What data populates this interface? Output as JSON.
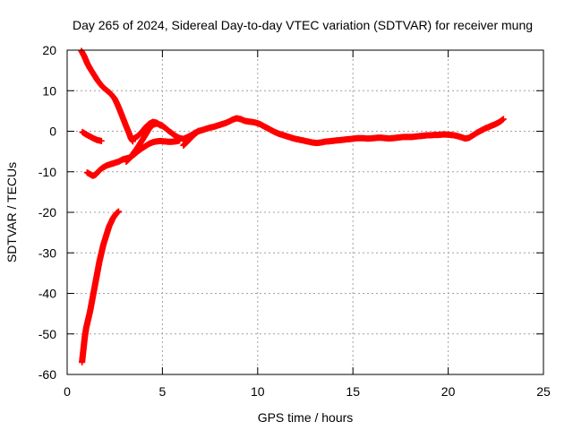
{
  "chart_data": {
    "type": "scatter",
    "title": "Day 265 of 2024, Sidereal Day-to-day VTEC variation (SDTVAR) for receiver mung",
    "xlabel": "GPS time / hours",
    "ylabel": "SDTVAR / TECUs",
    "xlim": [
      0,
      25
    ],
    "ylim": [
      -60,
      20
    ],
    "xticks": [
      0,
      5,
      10,
      15,
      20,
      25
    ],
    "yticks": [
      -60,
      -50,
      -40,
      -30,
      -20,
      -10,
      0,
      10,
      20
    ],
    "grid": true,
    "marker": "plus",
    "colors": {
      "series": "#ff0000",
      "grid": "#a0a0a0",
      "axes": "#000000"
    },
    "series": [
      {
        "name": "",
        "segments": [
          [
            [
              0.75,
              19.8
            ],
            [
              0.9,
              18.5
            ],
            [
              1.05,
              16.8
            ],
            [
              1.2,
              15.5
            ],
            [
              1.4,
              14
            ],
            [
              1.6,
              12.5
            ],
            [
              1.85,
              11
            ],
            [
              2.1,
              10
            ],
            [
              2.3,
              9.2
            ],
            [
              2.5,
              8
            ],
            [
              2.65,
              6.5
            ],
            [
              2.8,
              4.8
            ],
            [
              2.95,
              3
            ],
            [
              3.1,
              1.2
            ],
            [
              3.25,
              -0.5
            ],
            [
              3.35,
              -1.8
            ],
            [
              3.45,
              -2.5
            ]
          ],
          [
            [
              0.8,
              -0.2
            ],
            [
              1.0,
              -0.8
            ],
            [
              1.2,
              -1.3
            ],
            [
              1.4,
              -1.8
            ],
            [
              1.6,
              -2.2
            ],
            [
              1.8,
              -2.4
            ]
          ],
          [
            [
              1.05,
              -10.2
            ],
            [
              1.2,
              -10.6
            ],
            [
              1.35,
              -11
            ],
            [
              1.5,
              -10.7
            ],
            [
              1.7,
              -9.6
            ],
            [
              1.9,
              -8.9
            ],
            [
              2.1,
              -8.4
            ],
            [
              2.3,
              -8.1
            ],
            [
              2.5,
              -7.8
            ],
            [
              2.7,
              -7.5
            ],
            [
              2.9,
              -7
            ],
            [
              3.1,
              -6.7
            ],
            [
              3.3,
              -6.5
            ],
            [
              3.5,
              -5.8
            ],
            [
              3.7,
              -5
            ],
            [
              3.9,
              -4.3
            ],
            [
              4.1,
              -3.7
            ],
            [
              4.3,
              -3.1
            ],
            [
              4.5,
              -2.7
            ],
            [
              4.7,
              -2.5
            ],
            [
              4.9,
              -2.4
            ],
            [
              5.1,
              -2.5
            ],
            [
              5.3,
              -2.6
            ],
            [
              5.5,
              -2.6
            ],
            [
              5.7,
              -2.5
            ],
            [
              5.9,
              -2.3
            ]
          ],
          [
            [
              3.1,
              -7.5
            ],
            [
              3.3,
              -6.6
            ],
            [
              3.5,
              -5.3
            ],
            [
              3.7,
              -4
            ],
            [
              3.9,
              -2.5
            ],
            [
              4.1,
              -1
            ],
            [
              4.3,
              0.6
            ],
            [
              4.5,
              1.6
            ],
            [
              4.7,
              1.9
            ],
            [
              4.9,
              1.6
            ],
            [
              5.1,
              1
            ],
            [
              5.3,
              0.2
            ],
            [
              5.5,
              -0.5
            ],
            [
              5.7,
              -1.2
            ],
            [
              5.9,
              -1.7
            ],
            [
              6.1,
              -1.9
            ],
            [
              6.3,
              -1.5
            ],
            [
              6.5,
              -1
            ],
            [
              6.7,
              -0.4
            ],
            [
              6.9,
              0
            ],
            [
              7.1,
              0.3
            ],
            [
              7.3,
              0.6
            ],
            [
              7.5,
              0.9
            ],
            [
              7.7,
              1.1
            ],
            [
              7.9,
              1.4
            ],
            [
              8.1,
              1.7
            ],
            [
              8.3,
              2
            ],
            [
              8.5,
              2.4
            ],
            [
              8.7,
              2.9
            ],
            [
              8.9,
              3.2
            ],
            [
              9.1,
              3
            ],
            [
              9.3,
              2.6
            ],
            [
              9.5,
              2.4
            ],
            [
              9.7,
              2.3
            ],
            [
              9.9,
              2.1
            ],
            [
              10.1,
              1.8
            ],
            [
              10.3,
              1.3
            ],
            [
              10.5,
              0.8
            ],
            [
              10.7,
              0.3
            ],
            [
              10.9,
              -0.2
            ],
            [
              11.1,
              -0.6
            ],
            [
              11.3,
              -0.9
            ],
            [
              11.5,
              -1.2
            ],
            [
              11.7,
              -1.5
            ],
            [
              11.9,
              -1.8
            ],
            [
              12.1,
              -2
            ],
            [
              12.3,
              -2.2
            ],
            [
              12.5,
              -2.4
            ],
            [
              12.7,
              -2.6
            ],
            [
              12.9,
              -2.8
            ],
            [
              13.1,
              -2.9
            ],
            [
              13.3,
              -2.8
            ],
            [
              13.5,
              -2.6
            ],
            [
              13.7,
              -2.5
            ],
            [
              13.9,
              -2.4
            ],
            [
              14.1,
              -2.3
            ],
            [
              14.3,
              -2.2
            ],
            [
              14.5,
              -2.1
            ],
            [
              14.7,
              -2
            ],
            [
              14.9,
              -1.9
            ],
            [
              15.1,
              -1.8
            ],
            [
              15.3,
              -1.7
            ],
            [
              15.5,
              -1.7
            ],
            [
              15.7,
              -1.8
            ],
            [
              15.9,
              -1.8
            ],
            [
              16.1,
              -1.7
            ],
            [
              16.3,
              -1.6
            ],
            [
              16.5,
              -1.6
            ],
            [
              16.7,
              -1.7
            ],
            [
              16.9,
              -1.8
            ],
            [
              17.1,
              -1.7
            ],
            [
              17.3,
              -1.6
            ],
            [
              17.5,
              -1.5
            ],
            [
              17.7,
              -1.4
            ],
            [
              17.9,
              -1.4
            ],
            [
              18.1,
              -1.4
            ],
            [
              18.3,
              -1.3
            ],
            [
              18.5,
              -1.2
            ],
            [
              18.7,
              -1.1
            ],
            [
              18.9,
              -1
            ],
            [
              19.1,
              -1
            ],
            [
              19.3,
              -0.9
            ],
            [
              19.5,
              -0.9
            ],
            [
              19.7,
              -0.8
            ],
            [
              19.9,
              -0.8
            ],
            [
              20.1,
              -0.9
            ],
            [
              20.3,
              -1
            ],
            [
              20.5,
              -1.2
            ],
            [
              20.7,
              -1.5
            ],
            [
              20.9,
              -1.8
            ],
            [
              21.1,
              -1.6
            ],
            [
              21.3,
              -1
            ],
            [
              21.5,
              -0.4
            ],
            [
              21.7,
              0.1
            ],
            [
              21.9,
              0.6
            ],
            [
              22.1,
              1
            ],
            [
              22.3,
              1.4
            ],
            [
              22.5,
              1.8
            ],
            [
              22.7,
              2.3
            ],
            [
              22.9,
              3
            ]
          ],
          [
            [
              3.5,
              -1.8
            ],
            [
              3.7,
              -1.2
            ],
            [
              3.9,
              -0.3
            ],
            [
              4.1,
              0.9
            ],
            [
              4.3,
              1.8
            ],
            [
              4.5,
              2.3
            ],
            [
              4.7,
              2.1
            ],
            [
              4.9,
              1.4
            ]
          ],
          [
            [
              6.1,
              -3.5
            ],
            [
              6.3,
              -2.6
            ],
            [
              6.5,
              -1.6
            ],
            [
              6.7,
              -0.7
            ],
            [
              6.9,
              0.1
            ]
          ],
          [
            [
              0.78,
              -57
            ],
            [
              0.85,
              -54
            ],
            [
              0.92,
              -51
            ],
            [
              1.0,
              -48.5
            ],
            [
              1.1,
              -46.5
            ],
            [
              1.2,
              -44.5
            ],
            [
              1.3,
              -42
            ],
            [
              1.4,
              -39.5
            ],
            [
              1.5,
              -37
            ],
            [
              1.6,
              -34.5
            ],
            [
              1.7,
              -32
            ],
            [
              1.8,
              -30
            ],
            [
              1.9,
              -28
            ],
            [
              2.0,
              -26.5
            ],
            [
              2.1,
              -25
            ],
            [
              2.2,
              -23.5
            ],
            [
              2.3,
              -22.5
            ],
            [
              2.4,
              -21.5
            ],
            [
              2.5,
              -20.8
            ],
            [
              2.6,
              -20.2
            ],
            [
              2.7,
              -19.8
            ]
          ]
        ]
      }
    ]
  }
}
